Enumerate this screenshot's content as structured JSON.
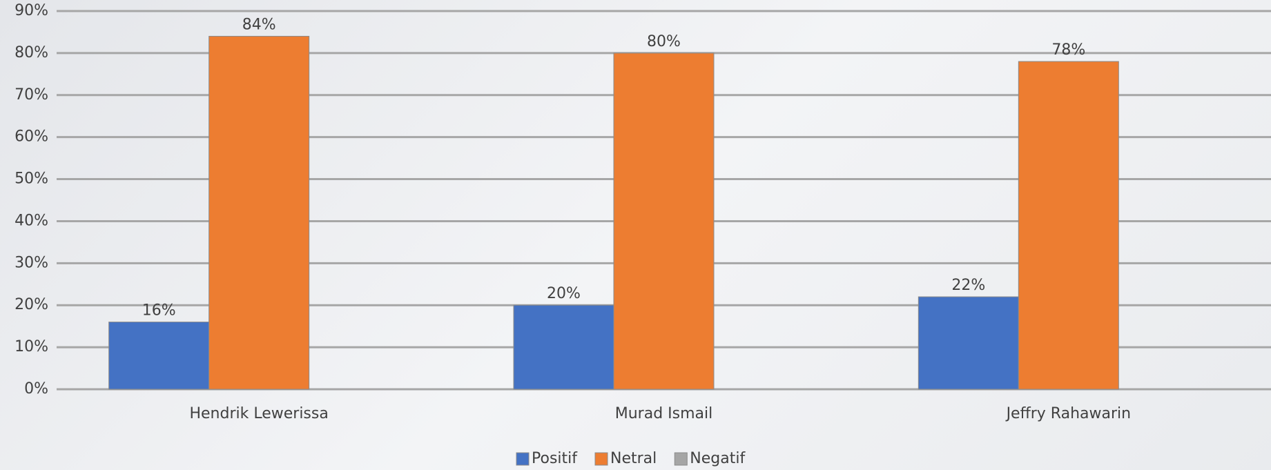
{
  "chart_data": {
    "type": "bar",
    "categories": [
      "Hendrik Lewerissa",
      "Murad Ismail",
      "Jeffry Rahawarin"
    ],
    "series": [
      {
        "name": "Positif",
        "color": "#4472c4",
        "values": [
          16,
          20,
          22
        ],
        "value_labels": [
          "16%",
          "20%",
          "22%"
        ]
      },
      {
        "name": "Netral",
        "color": "#ed7d31",
        "values": [
          84,
          80,
          78
        ],
        "value_labels": [
          "84%",
          "80%",
          "78%"
        ]
      },
      {
        "name": "Negatif",
        "color": "#a5a5a5",
        "values": [
          0,
          0,
          0
        ]
      }
    ],
    "ylim": [
      0,
      90
    ],
    "yticks": [
      {
        "value": 0,
        "label": "0%"
      },
      {
        "value": 10,
        "label": "10%"
      },
      {
        "value": 20,
        "label": "20%"
      },
      {
        "value": 30,
        "label": "30%"
      },
      {
        "value": 40,
        "label": "40%"
      },
      {
        "value": 50,
        "label": "50%"
      },
      {
        "value": 60,
        "label": "60%"
      },
      {
        "value": 70,
        "label": "70%"
      },
      {
        "value": 80,
        "label": "80%"
      },
      {
        "value": 90,
        "label": "90%"
      }
    ],
    "grid": true,
    "legend": "bottom"
  }
}
